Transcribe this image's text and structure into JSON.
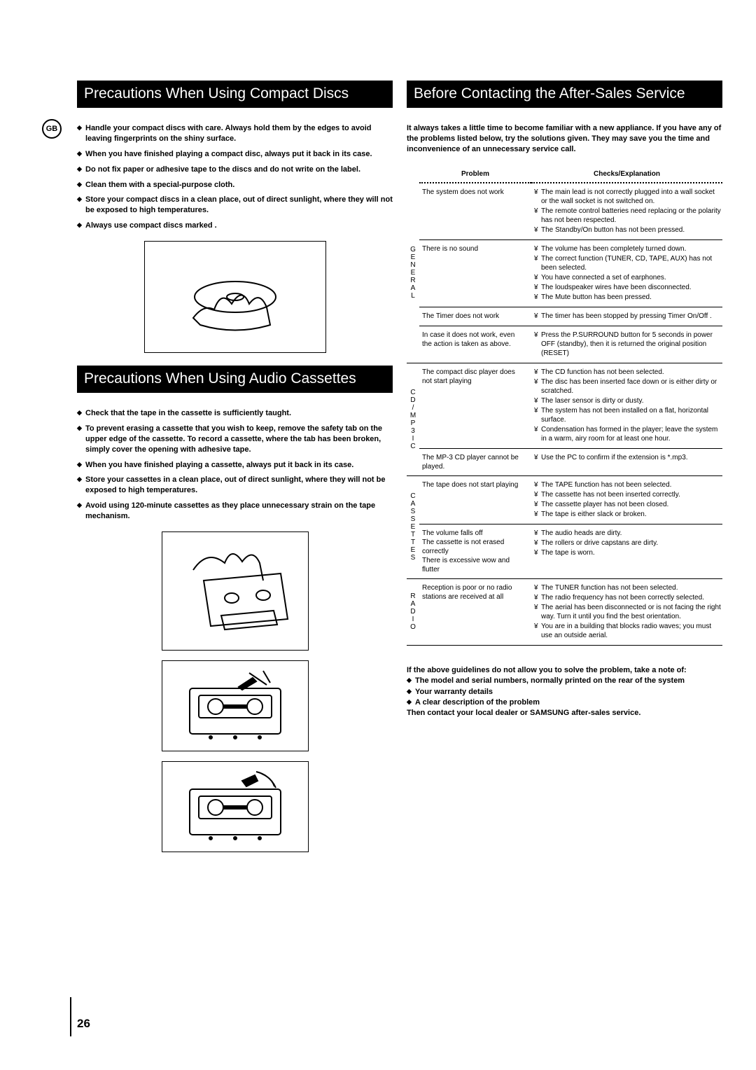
{
  "gb_label": "GB",
  "page_number": "26",
  "left": {
    "section1_title": "Precautions When Using Compact Discs",
    "bullets1": [
      "Handle your compact discs with care. Always hold them by the edges to avoid leaving fingerprints on the shiny surface.",
      "When you have finished playing a compact disc, always put it back in its case.",
      "Do not fix paper or adhesive tape to the discs and do not write on the label.",
      "Clean them with a special-purpose cloth.",
      "Store your compact discs in a clean place, out of direct sunlight, where they will not be exposed to high temperatures.",
      "Always use compact discs marked ."
    ],
    "section2_title": "Precautions When Using Audio Cassettes",
    "bullets2": [
      "Check that the tape in the cassette is sufficiently taught.",
      "To prevent erasing a cassette that you wish to keep, remove the safety tab on the upper edge of the cassette. To record a cassette, where  the tab has been broken, simply cover the opening with adhesive tape.",
      "When you have finished playing a cassette, always put it back in its case.",
      "Store your cassettes in a clean place, out of direct sunlight, where they will not be exposed to high temperatures.",
      "Avoid using 120-minute cassettes as they place unnecessary strain on the tape mechanism."
    ]
  },
  "right": {
    "section_title": "Before Contacting the After-Sales Service",
    "intro": "It always takes a little time to become familiar with a new appliance. If you have any of the problems listed below, try the solutions given. They may save you the time and inconvenience of an unnecessary service call.",
    "col_problem": "Problem",
    "col_checks": "Checks/Explanation",
    "groups": [
      {
        "cat": "GENERAL",
        "rows": [
          {
            "problem": "The system does not work",
            "checks": [
              "The main lead is not correctly plugged into a wall socket or the wall socket is not switched on.",
              "The remote control batteries need replacing or the polarity has not been respected.",
              "The Standby/On  button has not been pressed."
            ]
          },
          {
            "problem": "There is no sound",
            "checks": [
              "The volume has been completely turned down.",
              "The correct function (TUNER, CD, TAPE, AUX) has not been selected.",
              "You have connected a set of earphones.",
              "The loudspeaker wires have been disconnected.",
              "The Mute  button has been pressed."
            ]
          },
          {
            "problem": "The Timer does not work",
            "checks": [
              "The timer has been stopped by pressing Timer On/Off ."
            ]
          },
          {
            "problem": "In case it does not work, even the action is taken as above.",
            "checks": [
              "Press the P.SURROUND button for 5 seconds in power  OFF (standby), then it is returned the original position (RESET)"
            ]
          }
        ]
      },
      {
        "cat": "CD/MP3IC",
        "rows": [
          {
            "problem": "The compact disc player does not start playing",
            "checks": [
              "The CD function has not been selected.",
              "The disc has been inserted face down or is either dirty or scratched.",
              "The laser sensor is dirty or dusty.",
              "The system has not been installed on a flat, horizontal surface.",
              "Condensation has formed in the player; leave the system in a warm, airy room for at least one hour."
            ]
          },
          {
            "problem": "The MP-3 CD player cannot be played.",
            "checks": [
              "Use the PC to confirm if the extension is *.mp3."
            ]
          }
        ]
      },
      {
        "cat": "CASSETTES",
        "rows": [
          {
            "problem": "The tape does not start playing",
            "checks": [
              "The TAPE function has not been selected.",
              "The cassette has not been inserted correctly.",
              "The cassette player has not been closed.",
              "The tape is either slack or broken."
            ]
          },
          {
            "problem": "The volume falls off\nThe cassette is not erased correctly\nThere is excessive wow and flutter",
            "checks": [
              "The audio heads are dirty.",
              "The rollers or drive capstans are dirty.",
              "The tape is worn."
            ]
          }
        ]
      },
      {
        "cat": "RADIO",
        "rows": [
          {
            "problem": "Reception is poor or no radio stations are received at all",
            "checks": [
              "The TUNER function has not been selected.",
              "The radio frequency has not been correctly selected.",
              "The aerial has been disconnected or is not facing the right way. Turn it until you find the best orientation.",
              "You are in a building that blocks radio waves; you must use an outside aerial."
            ]
          }
        ]
      }
    ],
    "footer_lead": "If the above guidelines do not allow you to solve the problem, take a note of:",
    "footer_items": [
      "The model and serial numbers, normally printed on the rear of the system",
      "Your warranty details",
      "A clear description of the problem"
    ],
    "footer_tail": "Then contact your local dealer or SAMSUNG after-sales service."
  }
}
